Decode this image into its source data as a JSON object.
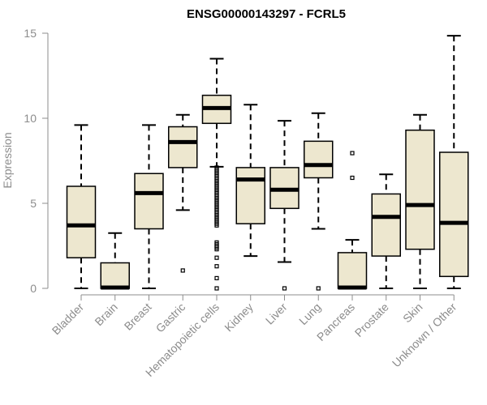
{
  "chart_data": {
    "type": "boxplot",
    "title": "ENSG00000143297 - FCRL5",
    "xlabel": "",
    "ylabel": "Expression",
    "ylim": [
      0,
      15
    ],
    "yticks": [
      0,
      5,
      10,
      15
    ],
    "box_fill": "#ede7cf",
    "box_stroke": "#000000",
    "axis_color": "#8c8c8c",
    "categories": [
      "Bladder",
      "Brain",
      "Breast",
      "Gastric",
      "Hematopoietic cells",
      "Kidney",
      "Liver",
      "Lung",
      "Pancreas",
      "Prostate",
      "Skin",
      "Unknown / Other"
    ],
    "boxes": [
      {
        "category": "Bladder",
        "min": 0,
        "q1": 1.8,
        "median": 3.7,
        "q3": 6.0,
        "max": 9.6,
        "outliers": []
      },
      {
        "category": "Brain",
        "min": 0,
        "q1": 0,
        "median": 0.05,
        "q3": 1.5,
        "max": 3.25,
        "outliers": []
      },
      {
        "category": "Breast",
        "min": 0,
        "q1": 3.5,
        "median": 5.6,
        "q3": 6.75,
        "max": 9.6,
        "outliers": []
      },
      {
        "category": "Gastric",
        "min": 4.6,
        "q1": 7.1,
        "median": 8.6,
        "q3": 9.5,
        "max": 10.2,
        "outliers": [
          1.05
        ]
      },
      {
        "category": "Hematopoietic cells",
        "min": 7.15,
        "q1": 9.7,
        "median": 10.6,
        "q3": 11.35,
        "max": 13.5,
        "outliers": [
          7.1,
          7.0,
          6.9,
          6.8,
          6.7,
          6.6,
          6.5,
          6.4,
          6.3,
          6.2,
          6.1,
          6.0,
          5.9,
          5.8,
          5.7,
          5.6,
          5.5,
          5.4,
          5.3,
          5.2,
          5.1,
          5.0,
          4.9,
          4.8,
          4.7,
          4.6,
          4.5,
          4.4,
          4.3,
          4.2,
          4.1,
          4.0,
          3.9,
          3.8,
          3.7,
          2.7,
          2.6,
          2.5,
          2.4,
          2.3,
          1.8,
          1.3,
          0.6,
          0.0
        ]
      },
      {
        "category": "Kidney",
        "min": 1.9,
        "q1": 3.8,
        "median": 6.4,
        "q3": 7.1,
        "max": 10.8,
        "outliers": []
      },
      {
        "category": "Liver",
        "min": 1.55,
        "q1": 4.7,
        "median": 5.8,
        "q3": 7.1,
        "max": 9.85,
        "outliers": [
          0.0
        ]
      },
      {
        "category": "Lung",
        "min": 3.5,
        "q1": 6.5,
        "median": 7.25,
        "q3": 8.65,
        "max": 10.3,
        "outliers": [
          0.0
        ]
      },
      {
        "category": "Pancreas",
        "min": 0,
        "q1": 0,
        "median": 0.05,
        "q3": 2.1,
        "max": 2.85,
        "outliers": [
          7.95,
          6.5
        ]
      },
      {
        "category": "Prostate",
        "min": 0,
        "q1": 1.9,
        "median": 4.2,
        "q3": 5.55,
        "max": 6.7,
        "outliers": []
      },
      {
        "category": "Skin",
        "min": 0,
        "q1": 2.3,
        "median": 4.9,
        "q3": 9.3,
        "max": 10.2,
        "outliers": []
      },
      {
        "category": "Unknown / Other",
        "min": 0,
        "q1": 0.7,
        "median": 3.85,
        "q3": 8.0,
        "max": 14.85,
        "outliers": []
      }
    ]
  }
}
